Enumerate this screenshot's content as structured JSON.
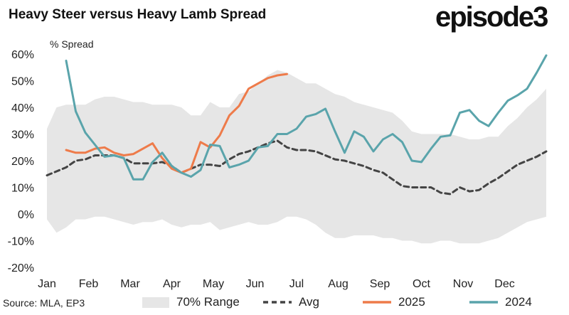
{
  "title": "Heavy Steer versus Heavy Lamb Spread",
  "logo": "episode3",
  "source": "Source: MLA, EP3",
  "chart_data": {
    "type": "line",
    "ylabel": "% Spread",
    "ylim": [
      -20,
      60
    ],
    "yticks": [
      -20,
      -10,
      0,
      10,
      20,
      30,
      40,
      50,
      60
    ],
    "ytick_labels": [
      "-20%",
      "-10%",
      "0%",
      "10%",
      "20%",
      "30%",
      "40%",
      "50%",
      "60%"
    ],
    "x_tick_labels": [
      "Jan",
      "Feb",
      "Mar",
      "Apr",
      "May",
      "Jun",
      "Jul",
      "Aug",
      "Sep",
      "Oct",
      "Nov",
      "Dec"
    ],
    "x_unit": "week of year",
    "xlim": [
      1,
      53
    ],
    "range": {
      "name": "70% Range",
      "x": [
        1,
        2,
        3,
        4,
        5,
        6,
        7,
        8,
        9,
        10,
        11,
        12,
        13,
        14,
        15,
        16,
        17,
        18,
        19,
        20,
        21,
        22,
        23,
        24,
        25,
        26,
        27,
        28,
        29,
        30,
        31,
        32,
        33,
        34,
        35,
        36,
        37,
        38,
        39,
        40,
        41,
        42,
        43,
        44,
        45,
        46,
        47,
        48,
        49,
        50,
        51,
        52,
        53
      ],
      "upper": [
        32,
        40,
        41,
        41,
        41,
        43,
        44,
        44,
        43,
        42,
        42,
        41,
        41,
        41,
        40,
        37,
        37,
        42,
        40,
        40,
        45,
        46,
        49,
        52,
        54,
        53,
        51,
        49,
        49,
        47,
        45,
        44,
        42,
        41,
        40,
        39,
        38,
        35,
        31,
        30,
        30,
        30,
        30,
        29,
        28,
        28,
        29,
        29,
        33,
        36,
        40,
        43,
        47
      ],
      "lower": [
        -2,
        -7,
        -5,
        -2,
        -2,
        -1,
        -1,
        -2,
        -3,
        -4,
        -3,
        -3,
        -2,
        -4,
        -5,
        -4,
        -4,
        -3,
        -6,
        -5,
        -4,
        -3,
        -4,
        -4,
        -3,
        -1,
        -1,
        -2,
        -4,
        -7,
        -9,
        -9,
        -8,
        -8,
        -8,
        -9,
        -9,
        -10,
        -10,
        -11,
        -11,
        -10,
        -10,
        -11,
        -11,
        -11,
        -10,
        -9,
        -7,
        -5,
        -3,
        -2,
        -1
      ]
    },
    "series": [
      {
        "name": "Avg",
        "x": [
          1,
          2,
          3,
          4,
          5,
          6,
          7,
          8,
          9,
          10,
          11,
          12,
          13,
          14,
          15,
          16,
          17,
          18,
          19,
          20,
          21,
          22,
          23,
          24,
          25,
          26,
          27,
          28,
          29,
          30,
          31,
          32,
          33,
          34,
          35,
          36,
          37,
          38,
          39,
          40,
          41,
          42,
          43,
          44,
          45,
          46,
          47,
          48,
          49,
          50,
          51,
          52,
          53
        ],
        "values": [
          14.5,
          16,
          17.5,
          20,
          20.5,
          22,
          22,
          22,
          21,
          19,
          19,
          19,
          19.5,
          18,
          15.5,
          17,
          18.5,
          18.5,
          18,
          20.5,
          22.5,
          23.5,
          25,
          26.5,
          27.5,
          25,
          24,
          24,
          23.5,
          22,
          20.5,
          20,
          19,
          18,
          16.5,
          15.5,
          13,
          10.5,
          10,
          10,
          10,
          8,
          7.5,
          10,
          8.5,
          9,
          11.5,
          13.5,
          16,
          18.5,
          20,
          21.5,
          23.5
        ]
      },
      {
        "name": "2025",
        "x": [
          3,
          4,
          5,
          6,
          7,
          8,
          9,
          10,
          11,
          12,
          13,
          14,
          15,
          16,
          17,
          18,
          19,
          20,
          21,
          22,
          23,
          24,
          25,
          26
        ],
        "values": [
          24,
          23,
          23,
          24.5,
          25,
          23,
          22,
          22.5,
          24.5,
          26.5,
          21,
          17,
          15.5,
          17,
          27,
          25,
          29.5,
          37,
          40.5,
          47,
          49,
          51,
          52,
          52.5
        ]
      },
      {
        "name": "2024",
        "x": [
          3,
          4,
          5,
          6,
          7,
          8,
          9,
          10,
          11,
          12,
          13,
          14,
          15,
          16,
          17,
          18,
          19,
          20,
          21,
          22,
          23,
          24,
          25,
          26,
          27,
          28,
          29,
          30,
          31,
          32,
          33,
          34,
          35,
          36,
          37,
          38,
          39,
          40,
          41,
          42,
          43,
          44,
          45,
          46,
          47,
          48,
          49,
          50,
          51,
          52,
          53
        ],
        "values": [
          57.5,
          38.5,
          30.5,
          26,
          21.5,
          22,
          21,
          13,
          13,
          19.5,
          23,
          18,
          15.5,
          14,
          16.5,
          26,
          25.5,
          17.5,
          18.5,
          20,
          25,
          25.5,
          30,
          30,
          32,
          36.5,
          37.5,
          39.5,
          31,
          23,
          31,
          29,
          23.5,
          28,
          30,
          27,
          20,
          19.5,
          24.5,
          29,
          29.5,
          38,
          39,
          35,
          33,
          38,
          42.5,
          44.5,
          47,
          53,
          59.5
        ]
      }
    ],
    "legend": [
      "70% Range",
      "Avg",
      "2025",
      "2024"
    ],
    "legend_position": "bottom",
    "grid": false
  },
  "colors": {
    "range": "#e6e6e6",
    "avg": "#444444",
    "y2025": "#ee7b4a",
    "y2024": "#5aa4ab"
  }
}
